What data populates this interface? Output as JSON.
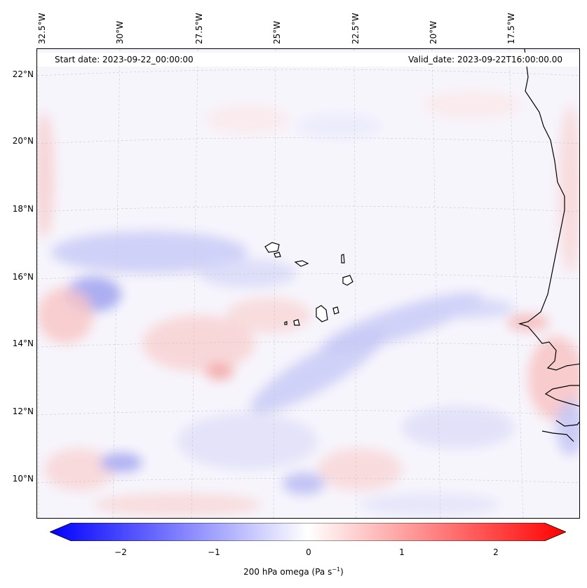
{
  "header": {
    "start_date": "Start date: 2023-09-22_00:00:00",
    "valid_date": "Valid_date: 2023-09-22T16:00:00.00"
  },
  "axes": {
    "lon_labels": [
      "32.5°W",
      "30°W",
      "27.5°W",
      "25°W",
      "22.5°W",
      "20°W",
      "17.5°W"
    ],
    "lat_labels": [
      "22°N",
      "20°N",
      "18°N",
      "16°N",
      "14°N",
      "12°N",
      "10°N"
    ]
  },
  "colorbar": {
    "ticks": [
      "−2",
      "−1",
      "0",
      "1",
      "2"
    ],
    "title": "200 hPa omega (Pa s",
    "title_sup": "−1",
    "title_end": ")",
    "colors": {
      "low": "#0000ff",
      "mid": "#ffffff",
      "high": "#ff0000"
    }
  },
  "map_features": [
    "coastline-west-africa",
    "cape-verde-islands",
    "gridlines"
  ]
}
